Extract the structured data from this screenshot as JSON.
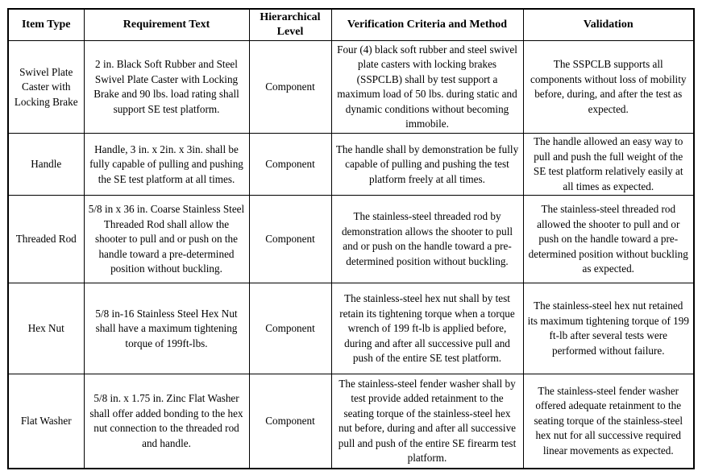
{
  "table": {
    "headers": [
      "Item Type",
      "Requirement Text",
      "Hierarchical Level",
      "Verification Criteria and Method",
      "Validation"
    ],
    "rows": [
      {
        "item_type": "Swivel Plate Caster with Locking Brake",
        "requirement": "2 in. Black Soft Rubber and Steel Swivel Plate Caster with Locking Brake and 90 lbs. load rating shall support SE test platform.",
        "level": "Component",
        "verification": "Four (4) black soft rubber and steel swivel plate casters with locking brakes (SSPCLB) shall by test support a maximum load of 50 lbs. during static and dynamic conditions without becoming immobile.",
        "validation": "The SSPCLB supports all components without loss of mobility before, during, and after the test as expected."
      },
      {
        "item_type": "Handle",
        "requirement": "Handle, 3 in. x 2in. x 3in. shall be fully capable of pulling and pushing the SE test platform at all times.",
        "level": "Component",
        "verification": "The handle shall by demonstration be fully capable of pulling and pushing the test platform freely at all times.",
        "validation": "The handle allowed an easy way to pull and push the full weight of the SE test platform relatively easily at all times as expected."
      },
      {
        "item_type": "Threaded Rod",
        "requirement": "5/8 in x 36 in. Coarse Stainless Steel Threaded Rod shall allow the shooter to pull and or push on the handle toward a pre-determined position without buckling.",
        "level": "Component",
        "verification": "The stainless-steel threaded rod by demonstration allows the shooter to pull and or push on the handle toward a pre-determined position without buckling.",
        "validation": "The stainless-steel threaded rod allowed the shooter to pull and or push on the handle toward a pre-determined position without buckling as expected."
      },
      {
        "item_type": "Hex Nut",
        "requirement": "5/8 in-16 Stainless Steel Hex Nut shall have a maximum tightening torque of 199ft-lbs.",
        "level": "Component",
        "verification": "The stainless-steel hex nut shall by test retain its tightening torque when a torque wrench of 199 ft-lb is applied before, during and after all successive pull and push of the entire SE test platform.",
        "validation": "The stainless-steel hex nut retained its maximum tightening torque of 199 ft-lb after several tests were performed without failure."
      },
      {
        "item_type": "Flat Washer",
        "requirement": "5/8 in. x 1.75 in. Zinc Flat Washer shall offer added bonding to the hex nut connection to the threaded rod and handle.",
        "level": "Component",
        "verification": "The stainless-steel fender washer shall by test provide added retainment to the seating torque of the stainless-steel hex nut before, during and after all successive pull and push of the entire SE firearm test platform.",
        "validation": "The stainless-steel fender washer offered adequate retainment to the seating torque of the stainless-steel hex nut for all successive required linear movements as expected."
      }
    ]
  }
}
